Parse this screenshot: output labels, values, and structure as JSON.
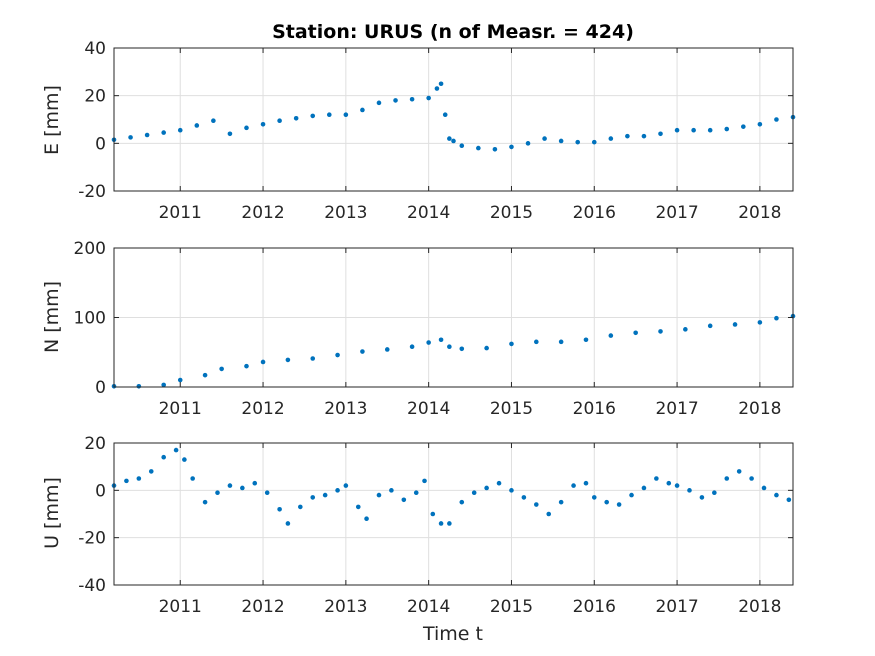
{
  "chart_data": [
    {
      "type": "scatter",
      "title": "Station: URUS (n of Measr. = 424)",
      "ylabel": "E [mm]",
      "xlabel": "",
      "xlim": [
        2010.2,
        2018.4
      ],
      "ylim": [
        -20,
        40
      ],
      "x_ticks": [
        2011,
        2012,
        2013,
        2014,
        2015,
        2016,
        2017,
        2018
      ],
      "x_tick_labels": [
        "2011",
        "2012",
        "2013",
        "2014",
        "2015",
        "2016",
        "2017",
        "2018"
      ],
      "y_ticks": [
        -20,
        0,
        20,
        40
      ],
      "y_tick_labels": [
        "-20",
        "0",
        "20",
        "40"
      ],
      "grid": true,
      "color": "#0072bd",
      "series": [
        {
          "x": [
            2010.2,
            2010.4,
            2010.6,
            2010.8,
            2011.0,
            2011.2,
            2011.4,
            2011.6,
            2011.8,
            2012.0,
            2012.2,
            2012.4,
            2012.6,
            2012.8,
            2013.0,
            2013.2,
            2013.4,
            2013.6,
            2013.8,
            2014.0,
            2014.1,
            2014.15,
            2014.2,
            2014.25,
            2014.3,
            2014.4,
            2014.6,
            2014.8,
            2015.0,
            2015.2,
            2015.4,
            2015.6,
            2015.8,
            2016.0,
            2016.2,
            2016.4,
            2016.6,
            2016.8,
            2017.0,
            2017.2,
            2017.4,
            2017.6,
            2017.8,
            2018.0,
            2018.2,
            2018.4
          ],
          "y": [
            1.5,
            2.5,
            3.5,
            4.5,
            5.5,
            7.5,
            9.5,
            4,
            6.5,
            8,
            9.5,
            10.5,
            11.5,
            12,
            12,
            14,
            17,
            18,
            18.5,
            19,
            23,
            25,
            12,
            2,
            1,
            -1,
            -2,
            -2.5,
            -1.5,
            0,
            2,
            1,
            0.5,
            0.5,
            2,
            3,
            3,
            4,
            5.5,
            5.5,
            5.5,
            6,
            7,
            8,
            10,
            11
          ]
        }
      ]
    },
    {
      "type": "scatter",
      "title": "",
      "ylabel": "N [mm]",
      "xlabel": "",
      "xlim": [
        2010.2,
        2018.4
      ],
      "ylim": [
        0,
        200
      ],
      "x_ticks": [
        2011,
        2012,
        2013,
        2014,
        2015,
        2016,
        2017,
        2018
      ],
      "x_tick_labels": [
        "2011",
        "2012",
        "2013",
        "2014",
        "2015",
        "2016",
        "2017",
        "2018"
      ],
      "y_ticks": [
        0,
        100,
        200
      ],
      "y_tick_labels": [
        "0",
        "100",
        "200"
      ],
      "grid": true,
      "color": "#0072bd",
      "series": [
        {
          "x": [
            2010.2,
            2010.5,
            2010.8,
            2011.0,
            2011.3,
            2011.5,
            2011.8,
            2012.0,
            2012.3,
            2012.6,
            2012.9,
            2013.2,
            2013.5,
            2013.8,
            2014.0,
            2014.15,
            2014.25,
            2014.4,
            2014.7,
            2015.0,
            2015.3,
            2015.6,
            2015.9,
            2016.2,
            2016.5,
            2016.8,
            2017.1,
            2017.4,
            2017.7,
            2018.0,
            2018.2,
            2018.4
          ],
          "y": [
            1,
            1,
            3,
            10,
            17,
            26,
            30,
            36,
            39,
            41,
            46,
            51,
            54,
            58,
            64,
            68,
            58,
            55,
            56,
            62,
            65,
            65,
            68,
            74,
            78,
            80,
            83,
            88,
            90,
            93,
            99,
            102
          ]
        }
      ]
    },
    {
      "type": "scatter",
      "title": "",
      "ylabel": "U [mm]",
      "xlabel": "Time t",
      "xlim": [
        2010.2,
        2018.4
      ],
      "ylim": [
        -40,
        20
      ],
      "x_ticks": [
        2011,
        2012,
        2013,
        2014,
        2015,
        2016,
        2017,
        2018
      ],
      "x_tick_labels": [
        "2011",
        "2012",
        "2013",
        "2014",
        "2015",
        "2016",
        "2017",
        "2018"
      ],
      "y_ticks": [
        -40,
        -20,
        0,
        20
      ],
      "y_tick_labels": [
        "-40",
        "-20",
        "0",
        "20"
      ],
      "grid": true,
      "color": "#0072bd",
      "series": [
        {
          "x": [
            2010.2,
            2010.35,
            2010.5,
            2010.65,
            2010.8,
            2010.95,
            2011.05,
            2011.15,
            2011.3,
            2011.45,
            2011.6,
            2011.75,
            2011.9,
            2012.05,
            2012.2,
            2012.3,
            2012.45,
            2012.6,
            2012.75,
            2012.9,
            2013.0,
            2013.15,
            2013.25,
            2013.4,
            2013.55,
            2013.7,
            2013.85,
            2013.95,
            2014.05,
            2014.15,
            2014.25,
            2014.4,
            2014.55,
            2014.7,
            2014.85,
            2015.0,
            2015.15,
            2015.3,
            2015.45,
            2015.6,
            2015.75,
            2015.9,
            2016.0,
            2016.15,
            2016.3,
            2016.45,
            2016.6,
            2016.75,
            2016.9,
            2017.0,
            2017.15,
            2017.3,
            2017.45,
            2017.6,
            2017.75,
            2017.9,
            2018.05,
            2018.2,
            2018.35
          ],
          "y": [
            2,
            4,
            5,
            8,
            14,
            17,
            13,
            5,
            -5,
            -1,
            2,
            1,
            3,
            -1,
            -8,
            -14,
            -7,
            -3,
            -2,
            0,
            2,
            -7,
            -12,
            -2,
            0,
            -4,
            -1,
            4,
            -10,
            -14,
            -14,
            -5,
            -1,
            1,
            3,
            0,
            -3,
            -6,
            -10,
            -5,
            2,
            3,
            -3,
            -5,
            -6,
            -2,
            1,
            5,
            3,
            2,
            0,
            -3,
            -1,
            5,
            8,
            5,
            1,
            -2,
            -4
          ]
        }
      ]
    }
  ]
}
